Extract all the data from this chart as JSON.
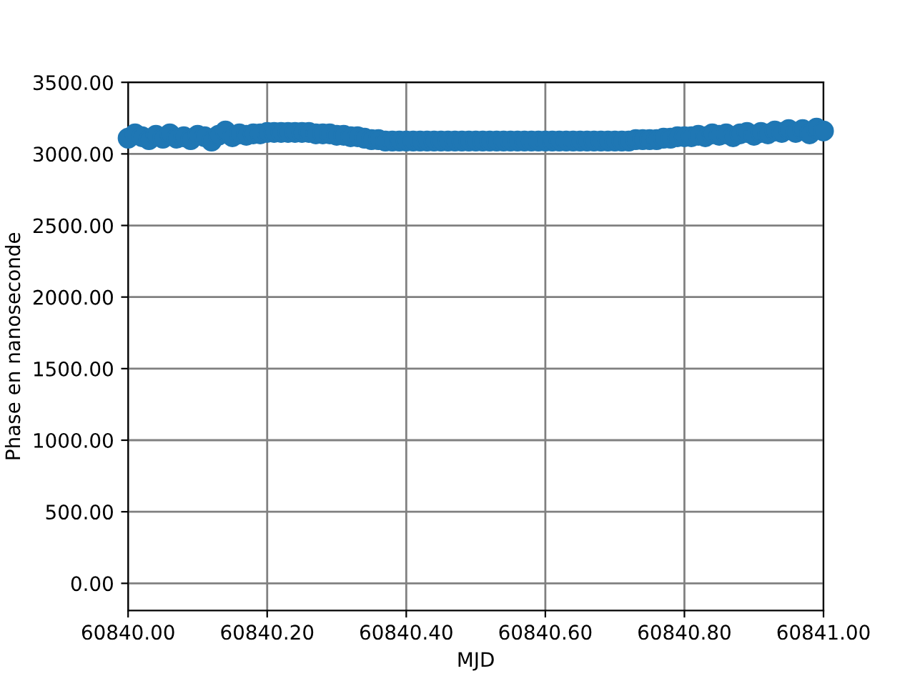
{
  "chart_data": {
    "type": "scatter",
    "xlabel": "MJD",
    "ylabel": "Phase en nanoseconde",
    "x": [
      60840.0,
      60840.01,
      60840.02,
      60840.03,
      60840.04,
      60840.05,
      60840.06,
      60840.07,
      60840.08,
      60840.09,
      60840.1,
      60840.11,
      60840.12,
      60840.13,
      60840.14,
      60840.15,
      60840.16,
      60840.17,
      60840.18,
      60840.19,
      60840.2,
      60840.21,
      60840.22,
      60840.23,
      60840.24,
      60840.25,
      60840.26,
      60840.27,
      60840.28,
      60840.29,
      60840.3,
      60840.31,
      60840.32,
      60840.33,
      60840.34,
      60840.35,
      60840.36,
      60840.37,
      60840.38,
      60840.39,
      60840.4,
      60840.41,
      60840.42,
      60840.43,
      60840.44,
      60840.45,
      60840.46,
      60840.47,
      60840.48,
      60840.49,
      60840.5,
      60840.51,
      60840.52,
      60840.53,
      60840.54,
      60840.55,
      60840.56,
      60840.57,
      60840.58,
      60840.59,
      60840.6,
      60840.61,
      60840.62,
      60840.63,
      60840.64,
      60840.65,
      60840.66,
      60840.67,
      60840.68,
      60840.69,
      60840.7,
      60840.71,
      60840.72,
      60840.73,
      60840.74,
      60840.75,
      60840.76,
      60840.77,
      60840.78,
      60840.79,
      60840.8,
      60840.81,
      60840.82,
      60840.83,
      60840.84,
      60840.85,
      60840.86,
      60840.87,
      60840.88,
      60840.89,
      60840.9,
      60840.91,
      60840.92,
      60840.93,
      60840.94,
      60840.95,
      60840.96,
      60840.97,
      60840.98,
      60840.99,
      60841.0
    ],
    "series": [
      {
        "color": "#1f77b4",
        "values": [
          3110,
          3140,
          3120,
          3100,
          3130,
          3110,
          3140,
          3110,
          3120,
          3100,
          3130,
          3120,
          3090,
          3130,
          3160,
          3120,
          3140,
          3130,
          3140,
          3140,
          3150,
          3150,
          3150,
          3150,
          3150,
          3150,
          3150,
          3140,
          3140,
          3140,
          3130,
          3130,
          3120,
          3120,
          3110,
          3100,
          3100,
          3090,
          3090,
          3090,
          3090,
          3090,
          3090,
          3090,
          3090,
          3090,
          3090,
          3090,
          3090,
          3090,
          3090,
          3090,
          3090,
          3090,
          3090,
          3090,
          3090,
          3090,
          3090,
          3090,
          3090,
          3090,
          3090,
          3090,
          3090,
          3090,
          3090,
          3090,
          3090,
          3090,
          3090,
          3090,
          3090,
          3100,
          3100,
          3100,
          3100,
          3110,
          3110,
          3120,
          3120,
          3120,
          3130,
          3120,
          3140,
          3130,
          3140,
          3120,
          3140,
          3150,
          3130,
          3150,
          3140,
          3160,
          3150,
          3170,
          3150,
          3170,
          3140,
          3180,
          3160
        ]
      }
    ],
    "marker": "circle",
    "grid": true,
    "xlim": [
      60840.0,
      60841.0
    ],
    "xticks": [
      {
        "value": 60840.0,
        "label": "60840.00"
      },
      {
        "value": 60840.2,
        "label": "60840.20"
      },
      {
        "value": 60840.4,
        "label": "60840.40"
      },
      {
        "value": 60840.6,
        "label": "60840.60"
      },
      {
        "value": 60840.8,
        "label": "60840.80"
      },
      {
        "value": 60841.0,
        "label": "60841.00"
      }
    ],
    "ylim": [
      -190,
      3500
    ],
    "yticks": [
      {
        "value": 0,
        "label": "0.00"
      },
      {
        "value": 500,
        "label": "500.00"
      },
      {
        "value": 1000,
        "label": "1000.00"
      },
      {
        "value": 1500,
        "label": "1500.00"
      },
      {
        "value": 2000,
        "label": "2000.00"
      },
      {
        "value": 2500,
        "label": "2500.00"
      },
      {
        "value": 3000,
        "label": "3000.00"
      },
      {
        "value": 3500,
        "label": "3500.00"
      }
    ]
  }
}
